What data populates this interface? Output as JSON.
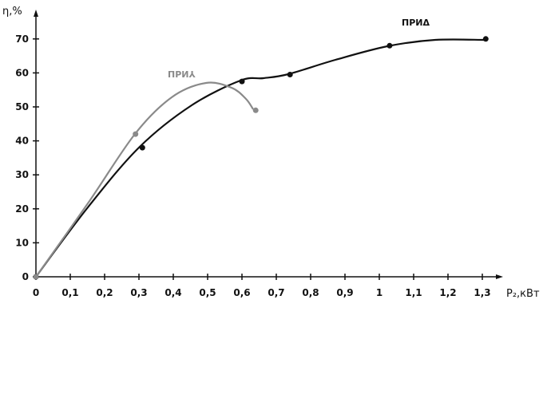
{
  "chart_data": {
    "type": "line",
    "title": "",
    "xlabel": "P₂,кВт",
    "ylabel": "η,%",
    "xlim": [
      0,
      1.36
    ],
    "ylim": [
      0,
      72
    ],
    "x_ticks": [
      0,
      0.1,
      0.2,
      0.3,
      0.4,
      0.5,
      0.6,
      0.7,
      0.8,
      0.9,
      1,
      1.1,
      1.2,
      1.3
    ],
    "x_tick_labels": [
      "0",
      "0,1",
      "0,2",
      "0,3",
      "0,4",
      "0,5",
      "0,6",
      "0,7",
      "0,8",
      "0,9",
      "1",
      "1,1",
      "1,2",
      "1,3"
    ],
    "y_ticks": [
      0,
      10,
      20,
      30,
      40,
      50,
      60,
      70
    ],
    "y_tick_labels": [
      "0",
      "10",
      "20",
      "30",
      "40",
      "50",
      "60",
      "70"
    ],
    "grid": false,
    "legend": "none",
    "series": [
      {
        "name": "ПРИΔ",
        "color": "#111111",
        "x": [
          0,
          0.31,
          0.6,
          0.74,
          1.03,
          1.31
        ],
        "y": [
          0,
          38,
          57.5,
          59.5,
          68,
          70
        ]
      },
      {
        "name": "ПРИ⅄",
        "color": "#8a8a8a",
        "x": [
          0,
          0.29,
          0.64
        ],
        "y": [
          0,
          42,
          49
        ]
      }
    ]
  }
}
